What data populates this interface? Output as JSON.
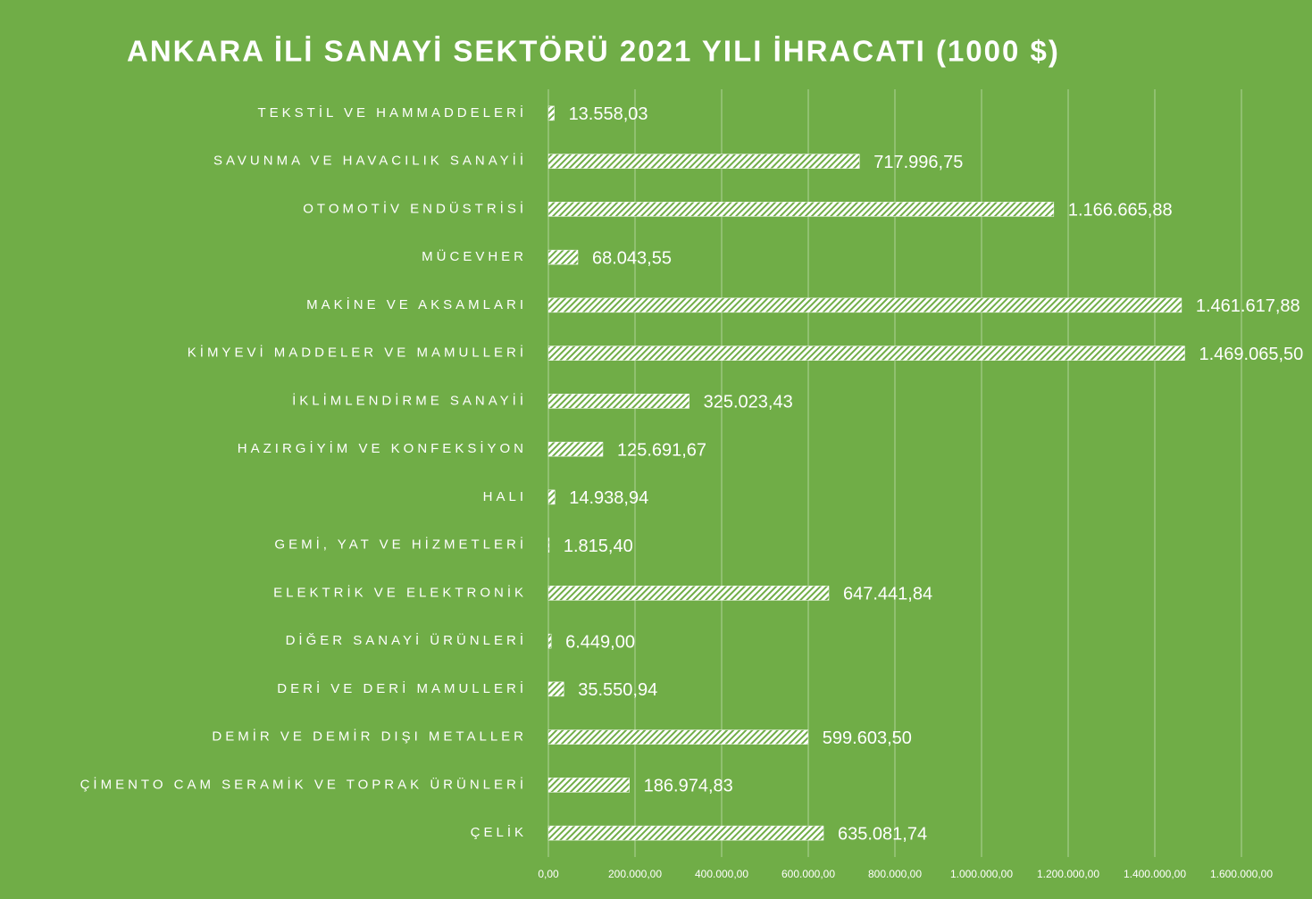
{
  "chart_data": {
    "type": "barh",
    "title": "ANKARA İLİ SANAYİ SEKTÖRÜ 2021 YILI İHRACATI (1000 $)",
    "categories": [
      "TEKSTİL VE HAMMADDELERİ",
      "SAVUNMA VE HAVACILIK SANAYİİ",
      "OTOMOTİV ENDÜSTRİSİ",
      "MÜCEVHER",
      "MAKİNE VE AKSAMLARI",
      "KİMYEVİ MADDELER VE MAMULLERİ",
      "İKLİMLENDİRME SANAYİİ",
      "HAZIRGİYİM VE KONFEKSİYON",
      "HALI",
      "GEMİ, YAT VE HİZMETLERİ",
      "ELEKTRİK VE ELEKTRONİK",
      "DİĞER SANAYİ ÜRÜNLERİ",
      "DERİ VE DERİ MAMULLERİ",
      "DEMİR VE DEMİR DIŞI METALLER",
      "ÇİMENTO CAM SERAMİK VE TOPRAK ÜRÜNLERİ",
      "ÇELİK"
    ],
    "values": [
      13558.03,
      717996.75,
      1166665.88,
      68043.55,
      1461617.88,
      1469065.5,
      325023.43,
      125691.67,
      14938.94,
      1815.4,
      647441.84,
      6449.0,
      35550.94,
      599603.5,
      186974.83,
      635081.74
    ],
    "value_labels": [
      "13.558,03",
      "717.996,75",
      "1.166.665,88",
      "68.043,55",
      "1.461.617,88",
      "1.469.065,50",
      "325.023,43",
      "125.691,67",
      "14.938,94",
      "1.815,40",
      "647.441,84",
      "6.449,00",
      "35.550,94",
      "599.603,50",
      "186.974,83",
      "635.081,74"
    ],
    "color": "#ffffff",
    "xlim": [
      0,
      1600000
    ],
    "xticks": [
      {
        "value": 0,
        "label": "0,00"
      },
      {
        "value": 200000,
        "label": "200.000,00"
      },
      {
        "value": 400000,
        "label": "400.000,00"
      },
      {
        "value": 600000,
        "label": "600.000,00"
      },
      {
        "value": 800000,
        "label": "800.000,00"
      },
      {
        "value": 1000000,
        "label": "1.000.000,00"
      },
      {
        "value": 1200000,
        "label": "1.200.000,00"
      },
      {
        "value": 1400000,
        "label": "1.400.000,00"
      },
      {
        "value": 1600000,
        "label": "1.600.000,00"
      }
    ],
    "grid": true
  }
}
